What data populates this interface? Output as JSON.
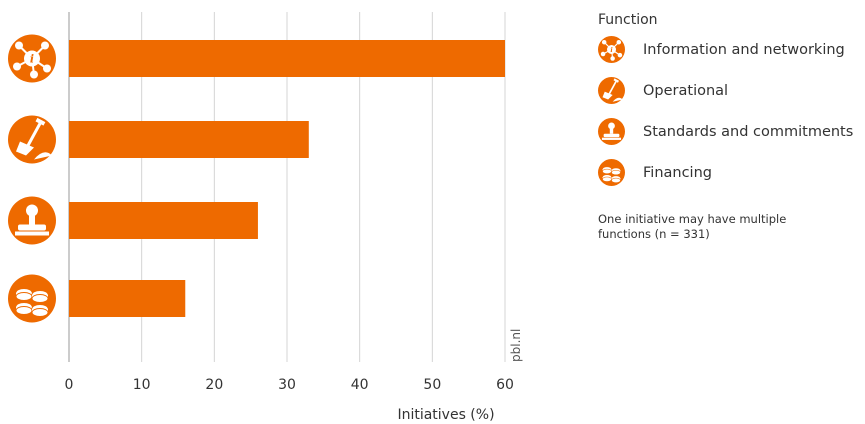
{
  "chart_data": {
    "type": "bar",
    "orientation": "horizontal",
    "categories": [
      "Information and networking",
      "Operational",
      "Standards and commitments",
      "Financing"
    ],
    "values": [
      60,
      33,
      26,
      16
    ],
    "xlabel": "Initiatives (%)",
    "xlim": [
      0,
      60
    ],
    "xticks": [
      0,
      10,
      20,
      30,
      40,
      50,
      60
    ],
    "grid": "vertical",
    "legend_position": "right",
    "legend_title": "Function",
    "note": "One initiative may have multiple functions (n = 331)",
    "watermark": "pbl.nl"
  },
  "colors": {
    "bar": "#EE6A00",
    "grid": "#d4d4d4",
    "axis": "#999999"
  },
  "icons": [
    "info-network-icon",
    "shovel-icon",
    "stamp-icon",
    "coins-icon"
  ]
}
